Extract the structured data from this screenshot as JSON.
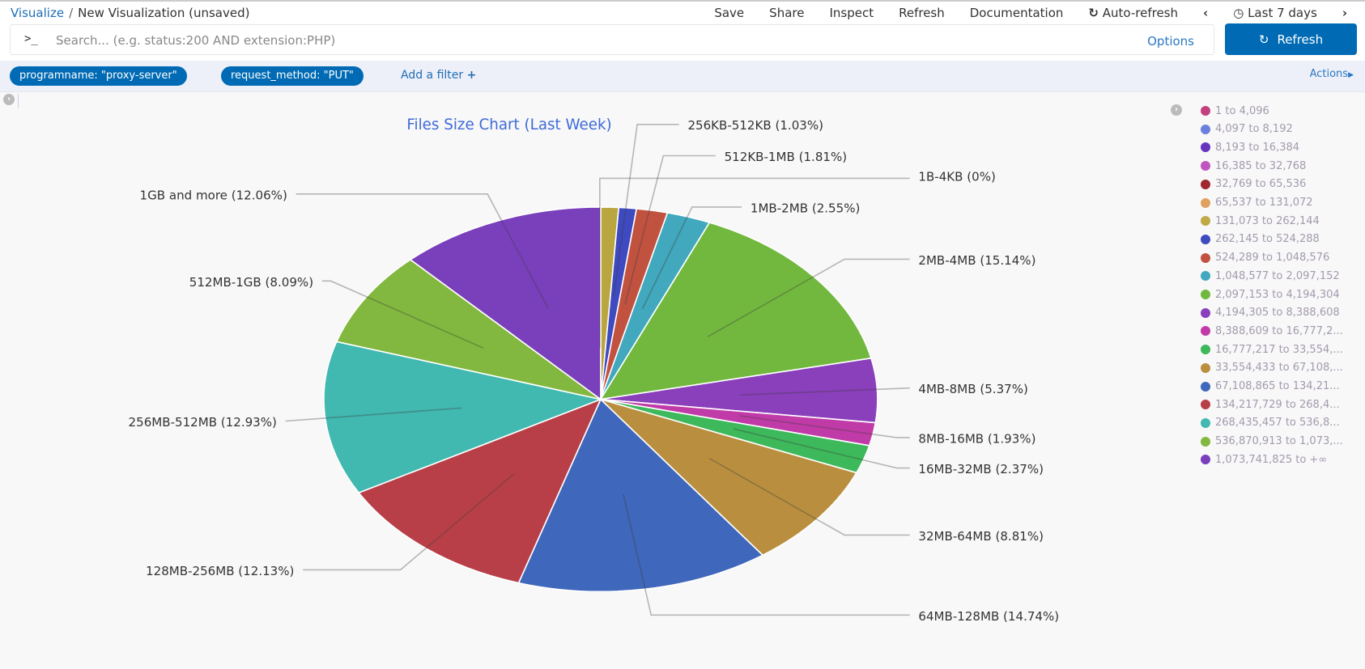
{
  "breadcrumb": {
    "root": "Visualize",
    "current": "New Visualization (unsaved)"
  },
  "menu": {
    "save": "Save",
    "share": "Share",
    "inspect": "Inspect",
    "refresh": "Refresh",
    "documentation": "Documentation",
    "auto_refresh": "Auto-refresh",
    "time_range": "Last 7 days"
  },
  "search": {
    "prompt": ">_",
    "placeholder": "Search... (e.g. status:200 AND extension:PHP)",
    "options": "Options",
    "refresh_button": "Refresh"
  },
  "filters": {
    "pills": [
      "programname: \"proxy-server\"",
      "request_method: \"PUT\""
    ],
    "add": "Add a filter",
    "actions": "Actions"
  },
  "chart_data": {
    "type": "pie",
    "title": "Files Size Chart (Last Week)",
    "slices": [
      {
        "label": "1B-4KB (0%)",
        "value": 0,
        "color": "#C2407E"
      },
      {
        "label": "",
        "value": 1.04,
        "color": "#B9A640"
      },
      {
        "label": "256KB-512KB (1.03%)",
        "value": 1.03,
        "color": "#3F49C0"
      },
      {
        "label": "512KB-1MB (1.81%)",
        "value": 1.81,
        "color": "#C15240"
      },
      {
        "label": "1MB-2MB (2.55%)",
        "value": 2.55,
        "color": "#41A8BD"
      },
      {
        "label": "2MB-4MB (15.14%)",
        "value": 15.14,
        "color": "#72B83F"
      },
      {
        "label": "4MB-8MB (5.37%)",
        "value": 5.37,
        "color": "#8A3FBB"
      },
      {
        "label": "8MB-16MB (1.93%)",
        "value": 1.93,
        "color": "#C13BA8"
      },
      {
        "label": "16MB-32MB (2.37%)",
        "value": 2.37,
        "color": "#3DB85A"
      },
      {
        "label": "32MB-64MB (8.81%)",
        "value": 8.81,
        "color": "#B98F3F"
      },
      {
        "label": "64MB-128MB (14.74%)",
        "value": 14.74,
        "color": "#3F67BB"
      },
      {
        "label": "128MB-256MB (12.13%)",
        "value": 12.13,
        "color": "#B83F48"
      },
      {
        "label": "256MB-512MB (12.93%)",
        "value": 12.93,
        "color": "#41B8B0"
      },
      {
        "label": "512MB-1GB (8.09%)",
        "value": 8.09,
        "color": "#82B83F"
      },
      {
        "label": "1GB and more (12.06%)",
        "value": 12.06,
        "color": "#7A3FBB"
      }
    ],
    "legend": [
      {
        "label": "1 to 4,096",
        "color": "#C2407E"
      },
      {
        "label": "4,097 to 8,192",
        "color": "#6A80DD"
      },
      {
        "label": "8,193 to 16,384",
        "color": "#6535C0"
      },
      {
        "label": "16,385 to 32,768",
        "color": "#C055C0"
      },
      {
        "label": "32,769 to 65,536",
        "color": "#A0282E"
      },
      {
        "label": "65,537 to 131,072",
        "color": "#E0A060"
      },
      {
        "label": "131,073 to 262,144",
        "color": "#BFAA45"
      },
      {
        "label": "262,145 to 524,288",
        "color": "#3F49C0"
      },
      {
        "label": "524,289 to 1,048,576",
        "color": "#C15240"
      },
      {
        "label": "1,048,577 to 2,097,152",
        "color": "#41A8BD"
      },
      {
        "label": "2,097,153 to 4,194,304",
        "color": "#72B83F"
      },
      {
        "label": "4,194,305 to 8,388,608",
        "color": "#8A3FBB"
      },
      {
        "label": "8,388,609 to 16,777,2...",
        "color": "#C13BA8"
      },
      {
        "label": "16,777,217 to 33,554,...",
        "color": "#3DB85A"
      },
      {
        "label": "33,554,433 to 67,108,...",
        "color": "#B98F3F"
      },
      {
        "label": "67,108,865 to 134,21...",
        "color": "#3F67BB"
      },
      {
        "label": "134,217,729 to 268,4...",
        "color": "#B83F48"
      },
      {
        "label": "268,435,457 to 536,8...",
        "color": "#41B8B0"
      },
      {
        "label": "536,870,913 to 1,073,...",
        "color": "#82B83F"
      },
      {
        "label": "1,073,741,825 to +∞",
        "color": "#7A3FBB"
      }
    ]
  }
}
